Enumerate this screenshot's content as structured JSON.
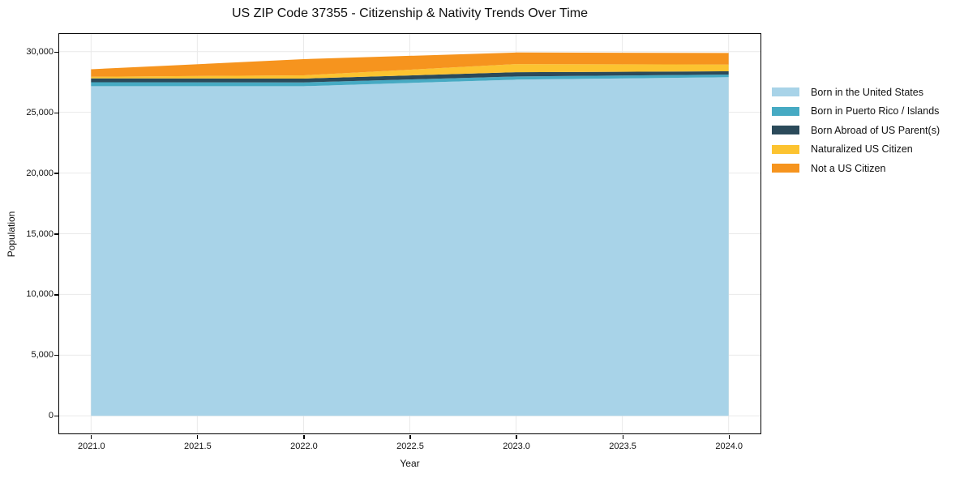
{
  "chart_data": {
    "type": "area",
    "stacked": true,
    "title": "US ZIP Code 37355 - Citizenship & Nativity Trends Over Time",
    "xlabel": "Year",
    "ylabel": "Population",
    "grid": true,
    "grid_color": "#e9e9e9",
    "legend_position": "right-outside",
    "x": [
      2021,
      2022,
      2023,
      2024
    ],
    "series": [
      {
        "name": "Born in the United States",
        "color": "#a8d3e8",
        "values": [
          27150,
          27150,
          27690,
          27890
        ]
      },
      {
        "name": "Born in Puerto Rico / Islands",
        "color": "#46aac3",
        "values": [
          330,
          315,
          265,
          225
        ]
      },
      {
        "name": "Born Abroad of US Parent(s)",
        "color": "#2b4a5a",
        "values": [
          315,
          315,
          355,
          265
        ]
      },
      {
        "name": "Naturalized US Citizen",
        "color": "#fcc330",
        "values": [
          135,
          265,
          665,
          555
        ]
      },
      {
        "name": "Not a US Citizen",
        "color": "#f6941e",
        "values": [
          620,
          1335,
          955,
          955
        ]
      }
    ],
    "xlim": [
      2020.85,
      2024.15
    ],
    "ylim": [
      -1450,
      31450
    ],
    "x_ticks": [
      {
        "value": 2021.0,
        "label": "2021.0"
      },
      {
        "value": 2021.5,
        "label": "2021.5"
      },
      {
        "value": 2022.0,
        "label": "2022.0"
      },
      {
        "value": 2022.5,
        "label": "2022.5"
      },
      {
        "value": 2023.0,
        "label": "2023.0"
      },
      {
        "value": 2023.5,
        "label": "2023.5"
      },
      {
        "value": 2024.0,
        "label": "2024.0"
      }
    ],
    "y_ticks": [
      {
        "value": 0,
        "label": "0"
      },
      {
        "value": 5000,
        "label": "5,000"
      },
      {
        "value": 10000,
        "label": "10,000"
      },
      {
        "value": 15000,
        "label": "15,000"
      },
      {
        "value": 20000,
        "label": "20,000"
      },
      {
        "value": 25000,
        "label": "25,000"
      },
      {
        "value": 30000,
        "label": "30,000"
      }
    ]
  }
}
